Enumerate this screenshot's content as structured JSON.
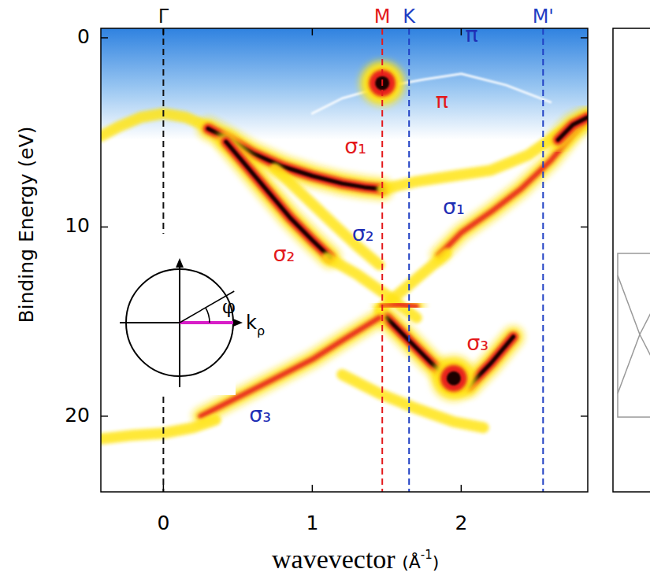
{
  "chart_data": {
    "type": "line",
    "y_label": "Binding Energy (eV)",
    "x_label": {
      "main": "wavevector",
      "unit_open": "(Å",
      "unit_sup": "-1",
      "unit_close": ")"
    },
    "xlim": [
      -0.42,
      2.85
    ],
    "ylim": [
      -0.5,
      24
    ],
    "xticks": [
      0,
      1,
      2
    ],
    "yticks": [
      0,
      10,
      20
    ],
    "grid": false,
    "k_points": [
      {
        "label": "Γ",
        "x": 0,
        "color": "#111111"
      },
      {
        "label": "M",
        "x": 1.47,
        "color": "#e3191c"
      },
      {
        "label": "K",
        "x": 1.65,
        "color": "#1f3fc4"
      },
      {
        "label": "M'",
        "x": 2.55,
        "color": "#1f3fc4"
      }
    ],
    "annotations": [
      {
        "text": "π",
        "x": 2.07,
        "y": -0.1,
        "color": "#1f2fb5"
      },
      {
        "text": "π",
        "x": 1.87,
        "y": 3.4,
        "color": "#e3191c"
      },
      {
        "text": "σ₁",
        "x": 1.29,
        "y": 5.8,
        "color": "#e3191c"
      },
      {
        "text": "σ₁",
        "x": 1.95,
        "y": 9.0,
        "color": "#1f2fb5"
      },
      {
        "text": "σ₂",
        "x": 1.34,
        "y": 10.4,
        "color": "#1f2fb5"
      },
      {
        "text": "σ₂",
        "x": 0.81,
        "y": 11.5,
        "color": "#e3191c"
      },
      {
        "text": "σ₃",
        "x": 2.11,
        "y": 16.2,
        "color": "#e3191c"
      },
      {
        "text": "σ₃",
        "x": 0.65,
        "y": 20.0,
        "color": "#1f2fb5"
      }
    ],
    "inset": {
      "angle_label": "φ",
      "axis_label": "k",
      "axis_sub": "ρ"
    },
    "series": [
      {
        "color": "yellow",
        "x": [
          -0.42,
          -0.3,
          -0.15,
          0,
          0.15,
          0.3
        ],
        "values": [
          5.2,
          4.7,
          4.2,
          4.0,
          4.2,
          4.7
        ]
      },
      {
        "color": "black",
        "x": [
          0.3,
          0.45,
          0.6,
          0.8,
          1.0,
          1.2,
          1.35,
          1.47
        ],
        "values": [
          4.8,
          5.4,
          6.1,
          6.8,
          7.3,
          7.7,
          7.9,
          8.0
        ]
      },
      {
        "color": "black",
        "x": [
          0.42,
          0.55,
          0.7,
          0.85,
          1.0,
          1.12
        ],
        "values": [
          5.5,
          6.7,
          8.1,
          9.5,
          10.7,
          11.6
        ]
      },
      {
        "color": "yellow",
        "x": [
          0.75,
          0.95,
          1.15,
          1.3,
          1.45
        ],
        "values": [
          6.9,
          8.4,
          9.9,
          11.0,
          12.0
        ]
      },
      {
        "color": "yellow",
        "x": [
          1.47,
          1.7,
          1.95,
          2.2,
          2.45,
          2.65,
          2.85
        ],
        "values": [
          8.0,
          7.6,
          7.3,
          7.0,
          6.2,
          5.1,
          4.2
        ]
      },
      {
        "color": "red",
        "x": [
          1.85,
          2.0,
          2.2,
          2.4,
          2.6,
          2.75,
          2.85
        ],
        "values": [
          11.5,
          10.3,
          9.2,
          8.0,
          6.5,
          5.1,
          4.3
        ]
      },
      {
        "color": "black",
        "x": [
          2.65,
          2.75,
          2.85
        ],
        "values": [
          5.4,
          4.6,
          4.2
        ]
      },
      {
        "color": "yellow",
        "x": [
          1.1,
          1.3,
          1.5,
          1.7
        ],
        "values": [
          11.6,
          12.5,
          13.6,
          14.8
        ]
      },
      {
        "color": "yellow",
        "x": [
          1.9,
          1.75,
          1.6,
          1.45
        ],
        "values": [
          11.4,
          12.4,
          13.4,
          14.4
        ]
      },
      {
        "color": "red",
        "x": [
          1.47,
          1.58,
          1.7
        ],
        "values": [
          14.2,
          14.1,
          14.2
        ]
      },
      {
        "color": "black",
        "x": [
          1.5,
          1.65,
          1.8,
          1.95,
          2.05,
          2.2,
          2.35
        ],
        "values": [
          14.8,
          16.0,
          17.2,
          18.2,
          18.4,
          17.2,
          15.8
        ]
      },
      {
        "color": "red",
        "x": [
          0.25,
          0.5,
          0.75,
          1.0,
          1.2,
          1.45
        ],
        "values": [
          20.0,
          19.0,
          18.0,
          17.0,
          16.0,
          14.8
        ]
      },
      {
        "color": "yellow",
        "x": [
          1.2,
          1.45,
          1.7,
          1.95,
          2.15
        ],
        "values": [
          17.8,
          18.8,
          19.6,
          20.3,
          20.6
        ]
      },
      {
        "color": "yellow",
        "x": [
          -0.42,
          -0.2,
          0,
          0.2,
          0.35
        ],
        "values": [
          21.2,
          21.0,
          20.9,
          20.6,
          20.2
        ]
      },
      {
        "color": "white",
        "x": [
          1.0,
          1.2,
          1.47,
          1.75,
          2.0,
          2.3,
          2.6
        ],
        "values": [
          4.0,
          3.2,
          2.6,
          2.2,
          1.9,
          2.5,
          3.4
        ]
      },
      {
        "color": "black",
        "marker": "blob",
        "x": [
          1.47
        ],
        "values": [
          2.4
        ]
      },
      {
        "color": "black",
        "marker": "blob",
        "x": [
          1.95
        ],
        "values": [
          18.0
        ]
      }
    ]
  }
}
